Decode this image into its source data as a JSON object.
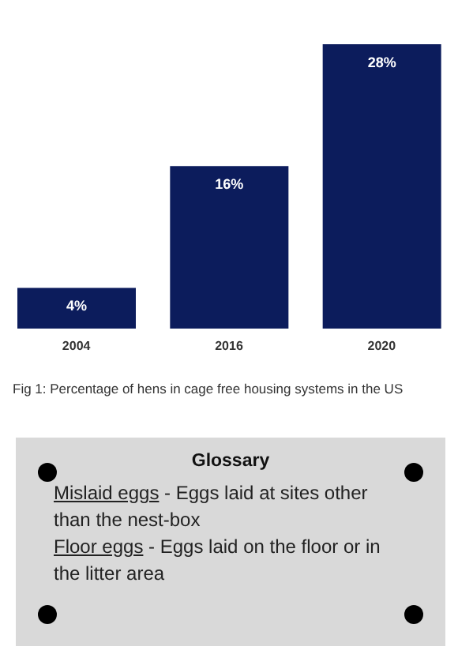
{
  "chart_data": {
    "type": "bar",
    "categories": [
      "2004",
      "2016",
      "2020"
    ],
    "values": [
      4,
      16,
      28
    ],
    "color": "#0c1c5c",
    "value_labels": [
      "4%",
      "16%",
      "28%"
    ],
    "annotations": [
      "Fig 1: Percentage of hens in cage free housing systems in the US",
      "Glossary",
      "Mislaid eggs - Eggs laid at sites other than the nest-box",
      "Floor eggs - Eggs laid on the floor or in the litter area"
    ]
  }
}
